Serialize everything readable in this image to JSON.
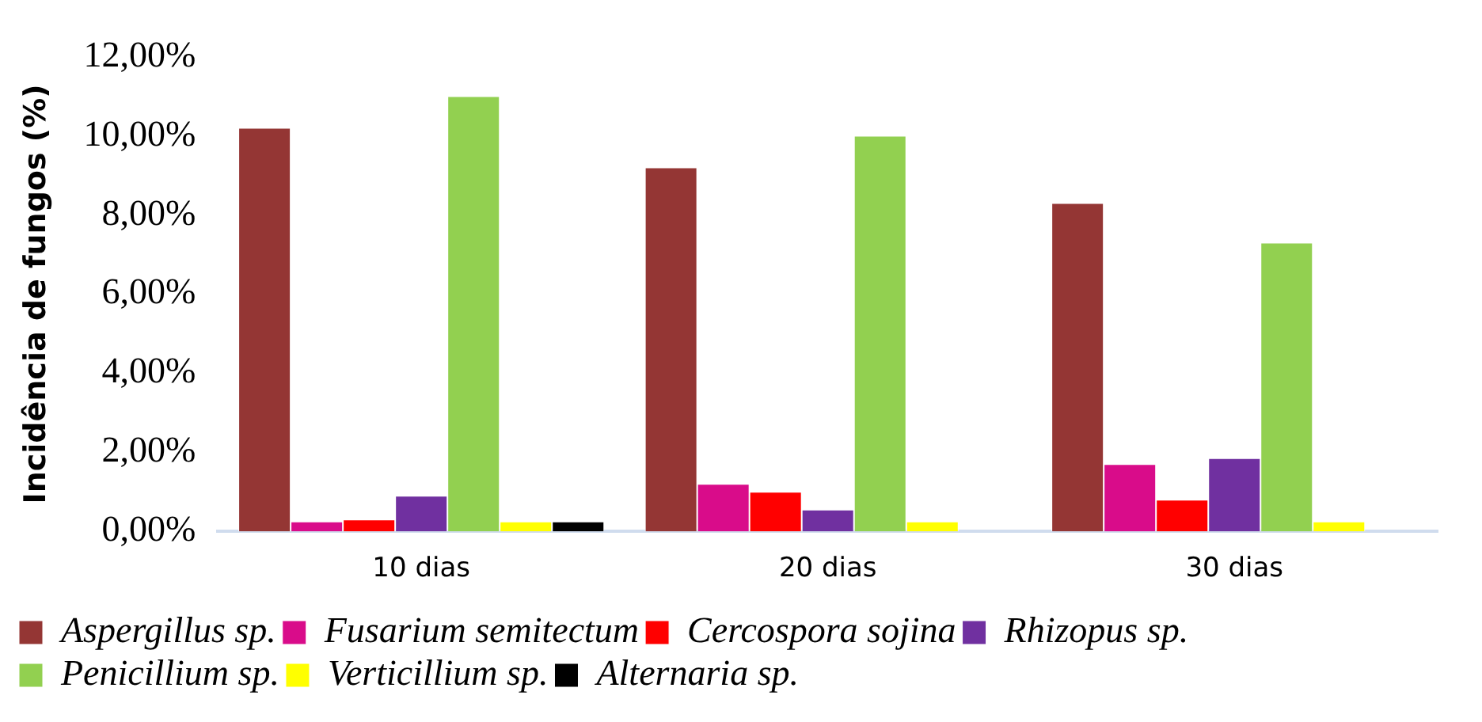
{
  "chart_data": {
    "type": "bar",
    "ylabel": "Incidência de fungos (%)",
    "categories": [
      "10 dias",
      "20 dias",
      "30 dias"
    ],
    "series": [
      {
        "name": "Aspergillus sp.",
        "color": "#943634",
        "values": [
          10.2,
          9.2,
          8.3
        ]
      },
      {
        "name": "Fusarium semitectum",
        "color": "#d90c8a",
        "values": [
          0.25,
          1.2,
          1.7
        ]
      },
      {
        "name": "Cercospora sojina",
        "color": "#ff0000",
        "values": [
          0.3,
          1.0,
          0.8
        ]
      },
      {
        "name": "Rhizopus sp.",
        "color": "#7030a0",
        "values": [
          0.9,
          0.55,
          1.85
        ]
      },
      {
        "name": "Penicillium sp.",
        "color": "#92d050",
        "values": [
          11.0,
          10.0,
          7.3
        ]
      },
      {
        "name": "Verticillium sp.",
        "color": "#ffff00",
        "values": [
          0.25,
          0.25,
          0.25
        ]
      },
      {
        "name": "Alternaria sp.",
        "color": "#000000",
        "values": [
          0.25,
          0,
          0
        ]
      }
    ],
    "ylim": [
      0,
      12
    ],
    "yticks": [
      {
        "value": 0,
        "label": "0,00%"
      },
      {
        "value": 2,
        "label": "2,00%"
      },
      {
        "value": 4,
        "label": "4,00%"
      },
      {
        "value": 6,
        "label": "6,00%"
      },
      {
        "value": 8,
        "label": "8,00%"
      },
      {
        "value": 10,
        "label": "10,00%"
      },
      {
        "value": 12,
        "label": "12,00%"
      }
    ],
    "grid": false,
    "legend": "bottom"
  }
}
